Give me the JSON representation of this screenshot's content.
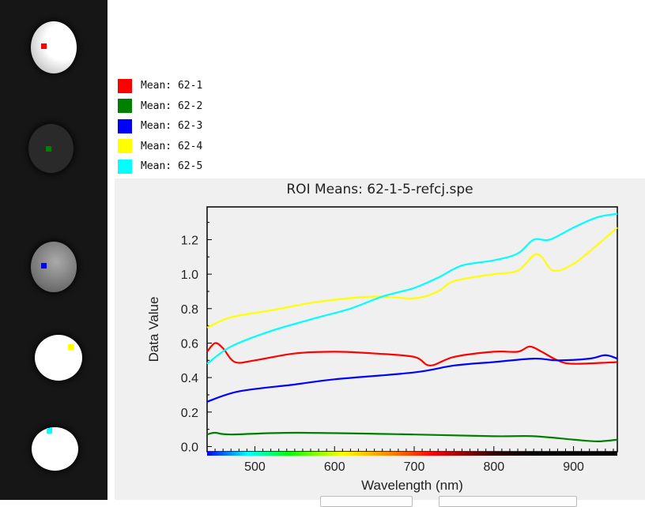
{
  "legend": [
    {
      "label": "Mean: 62-1",
      "color": "#ff0000"
    },
    {
      "label": "Mean: 62-2",
      "color": "#008000"
    },
    {
      "label": "Mean: 62-3",
      "color": "#0000ff"
    },
    {
      "label": "Mean: 62-4",
      "color": "#ffff00"
    },
    {
      "label": "Mean: 62-5",
      "color": "#00ffff"
    }
  ],
  "chart_data": {
    "type": "line",
    "title": "ROI Means: 62-1-5-refcj.spe",
    "xlabel": "Wavelength (nm)",
    "ylabel": "Data Value",
    "xlim": [
      440,
      955
    ],
    "ylim": [
      -0.03,
      1.39
    ],
    "xticks": [
      500,
      600,
      700,
      800,
      900
    ],
    "yticks": [
      0.0,
      0.2,
      0.4,
      0.6,
      0.8,
      1.0,
      1.2
    ],
    "grid": false,
    "series": [
      {
        "name": "Mean: 62-1",
        "color": "#ff0000",
        "x": [
          440,
          450,
          460,
          475,
          500,
          550,
          600,
          650,
          700,
          720,
          750,
          800,
          830,
          845,
          860,
          880,
          900,
          955
        ],
        "y": [
          0.55,
          0.6,
          0.57,
          0.49,
          0.5,
          0.54,
          0.55,
          0.54,
          0.52,
          0.47,
          0.52,
          0.55,
          0.55,
          0.58,
          0.55,
          0.5,
          0.48,
          0.49
        ]
      },
      {
        "name": "Mean: 62-2",
        "color": "#008000",
        "x": [
          440,
          450,
          470,
          550,
          700,
          800,
          850,
          900,
          930,
          955
        ],
        "y": [
          0.07,
          0.08,
          0.07,
          0.08,
          0.07,
          0.06,
          0.06,
          0.04,
          0.03,
          0.04
        ]
      },
      {
        "name": "Mean: 62-3",
        "color": "#0000ff",
        "x": [
          440,
          480,
          550,
          600,
          700,
          750,
          800,
          850,
          880,
          920,
          940,
          955
        ],
        "y": [
          0.26,
          0.32,
          0.36,
          0.39,
          0.43,
          0.47,
          0.49,
          0.51,
          0.5,
          0.51,
          0.53,
          0.51
        ]
      },
      {
        "name": "Mean: 62-4",
        "color": "#ffff00",
        "x": [
          440,
          470,
          520,
          580,
          650,
          700,
          730,
          750,
          800,
          830,
          850,
          860,
          875,
          900,
          930,
          955
        ],
        "y": [
          0.69,
          0.75,
          0.79,
          0.84,
          0.87,
          0.86,
          0.9,
          0.96,
          1.0,
          1.02,
          1.11,
          1.1,
          1.02,
          1.06,
          1.17,
          1.27
        ]
      },
      {
        "name": "Mean: 62-5",
        "color": "#00ffff",
        "x": [
          440,
          470,
          520,
          580,
          620,
          660,
          700,
          730,
          760,
          800,
          830,
          850,
          870,
          900,
          930,
          955
        ],
        "y": [
          0.48,
          0.58,
          0.67,
          0.75,
          0.8,
          0.87,
          0.92,
          0.98,
          1.05,
          1.08,
          1.12,
          1.2,
          1.2,
          1.27,
          1.33,
          1.35
        ]
      }
    ]
  }
}
